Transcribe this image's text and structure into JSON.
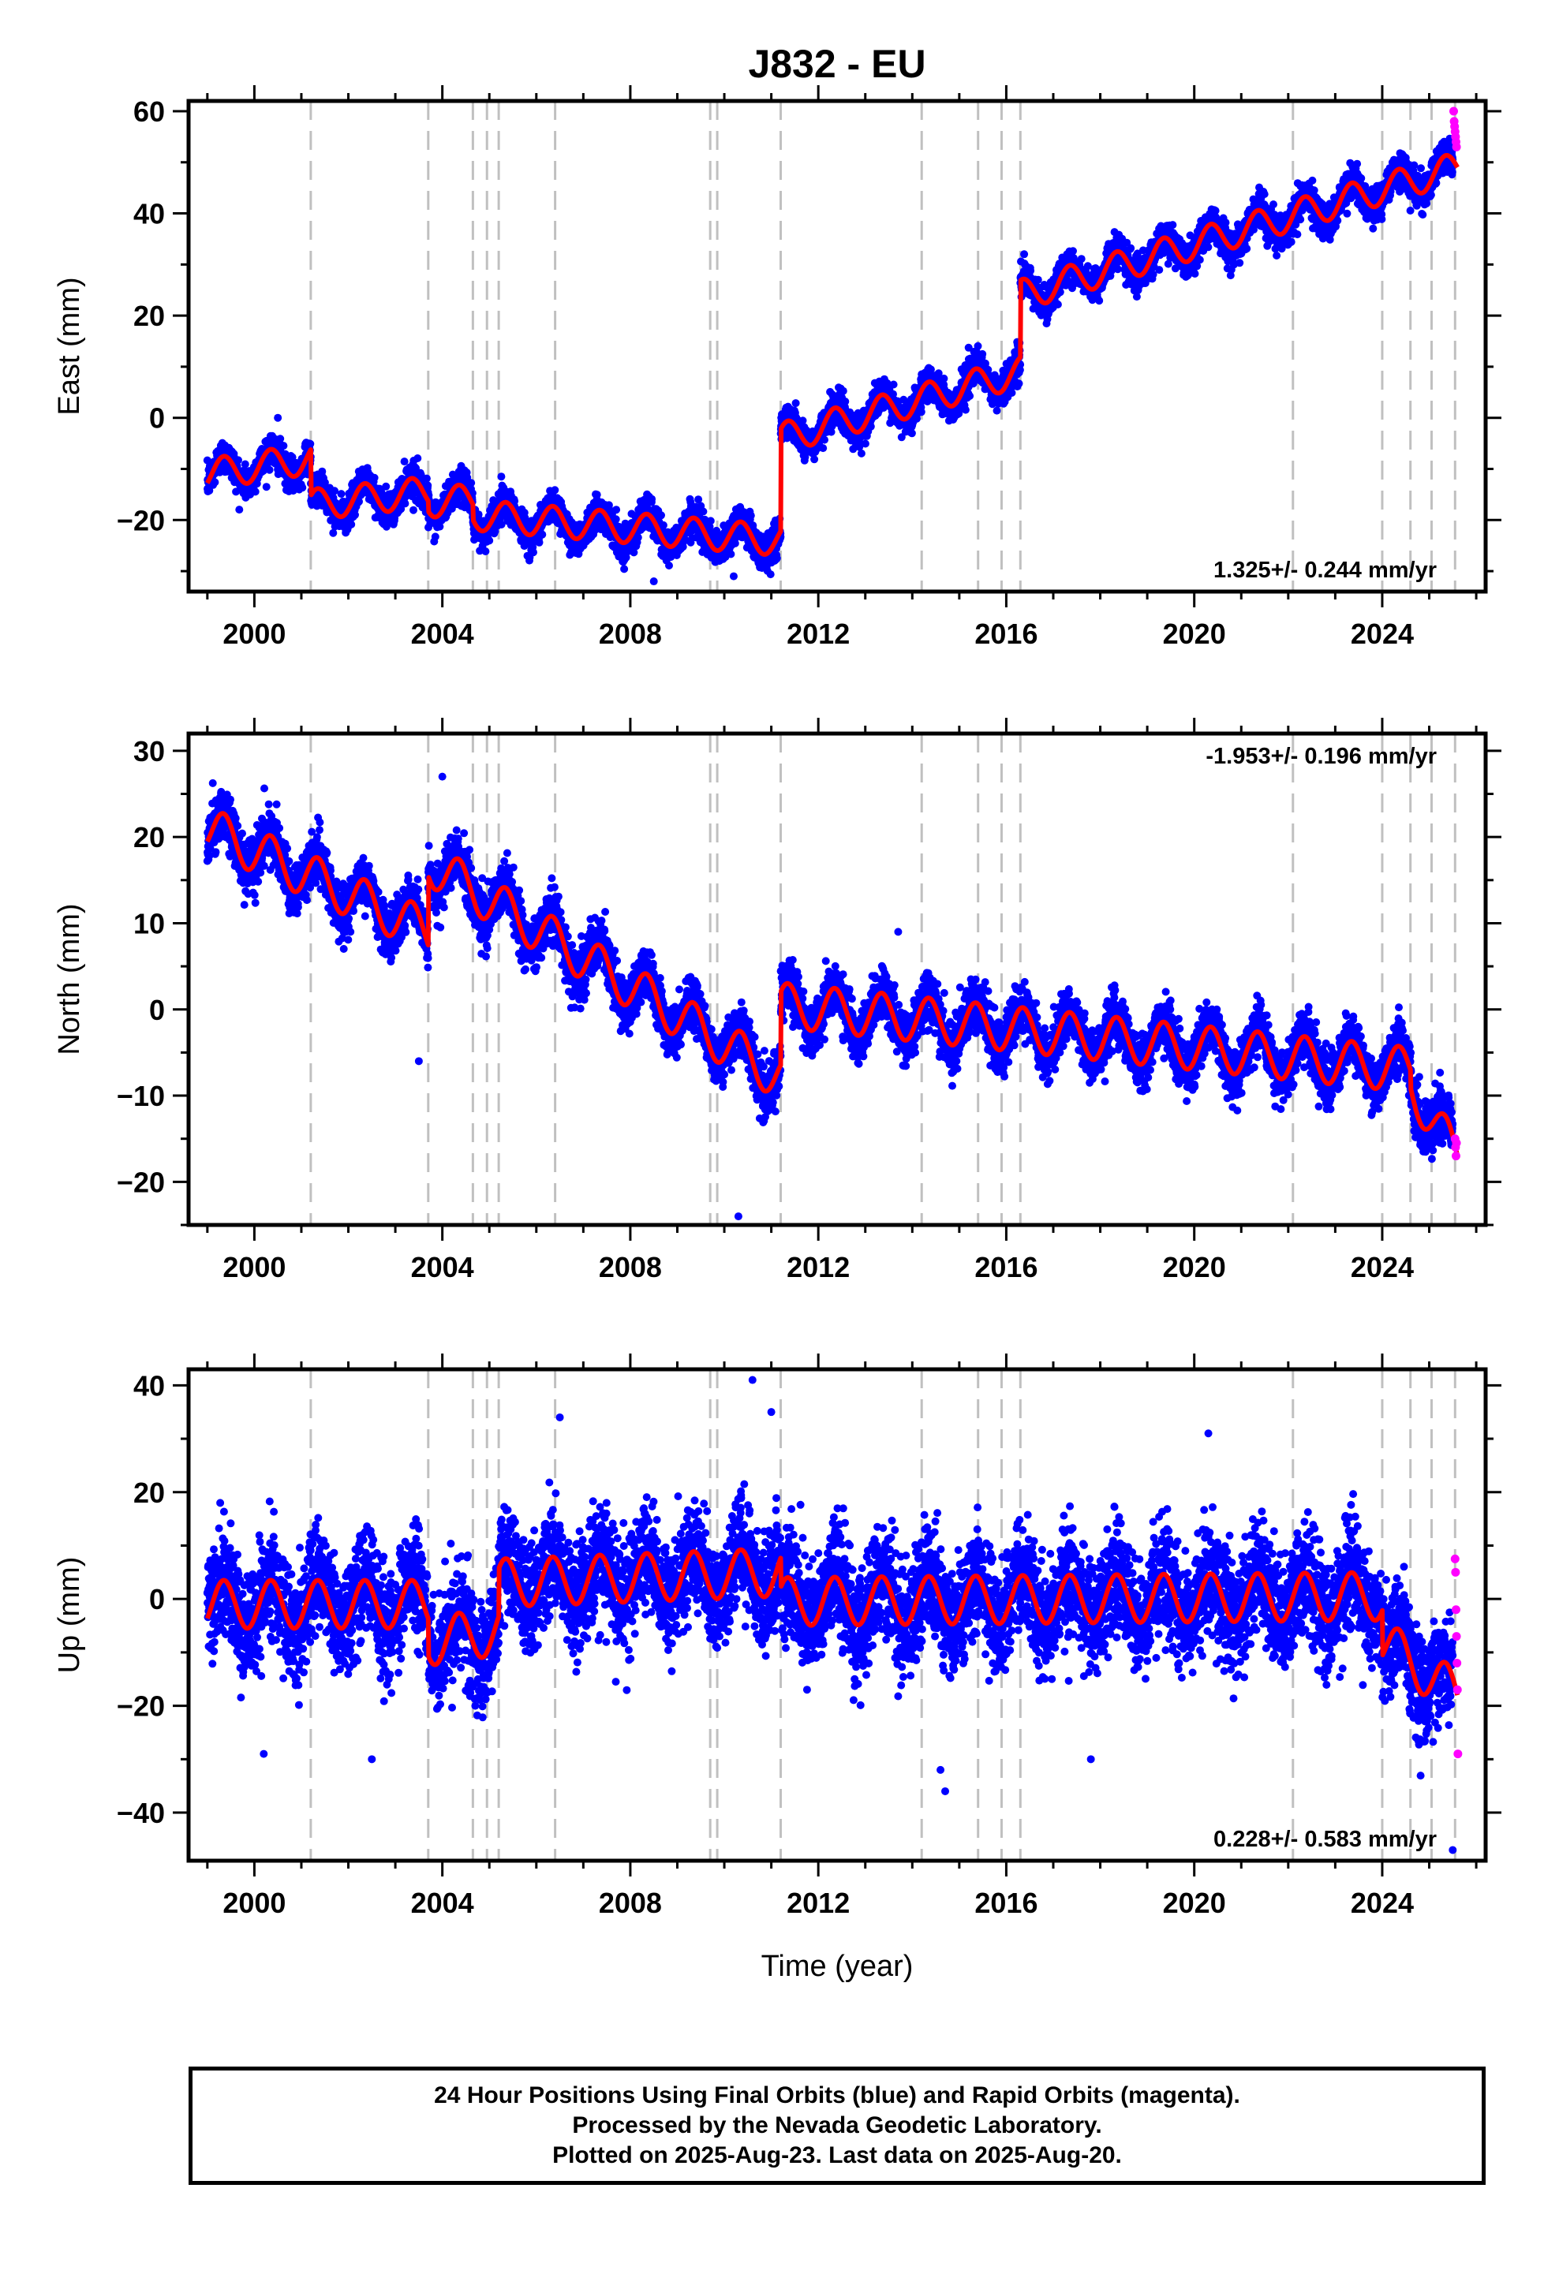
{
  "chart_data": {
    "type": "scatter",
    "title": "J832 - EU",
    "xlabel": "Time (year)",
    "xlim": [
      1998.6,
      2026.2
    ],
    "x_ticks": [
      2000,
      2004,
      2008,
      2012,
      2016,
      2020,
      2024
    ],
    "x_tick_labels": [
      "2000",
      "2004",
      "2008",
      "2012",
      "2016",
      "2020",
      "2024"
    ],
    "grid": false,
    "event_lines_dashed_gray": [
      2001.2,
      2003.7,
      2004.65,
      2004.95,
      2005.2,
      2006.4,
      2009.7,
      2009.85,
      2011.2,
      2014.2,
      2015.4,
      2015.9,
      2016.3,
      2022.1,
      2024.0,
      2024.6,
      2025.05,
      2025.55
    ],
    "series_colors": {
      "final_orbits": "#0000ff",
      "rapid_orbits": "#ff00ff",
      "model_fit": "#ff0000",
      "event_lines": "#c0c0c0"
    },
    "panels": [
      {
        "ylabel": "East (mm)",
        "ylim": [
          -34,
          62
        ],
        "y_ticks": [
          -20,
          0,
          20,
          40,
          60
        ],
        "y_tick_labels": [
          "−20",
          "0",
          "20",
          "40",
          "60"
        ],
        "rate_label": "1.325+/- 0.244 mm/yr",
        "rate_position": "bottom-right",
        "trend_segments": [
          {
            "start": 1999.0,
            "end": 2001.2,
            "v0": -11.0,
            "v1": -8.0
          },
          {
            "start": 2001.2,
            "end": 2003.7,
            "v0": -17.0,
            "v1": -14.5
          },
          {
            "start": 2003.7,
            "end": 2004.65,
            "v0": -16.5,
            "v1": -16.0
          },
          {
            "start": 2004.65,
            "end": 2011.2,
            "v0": -19.0,
            "v1": -24.0
          },
          {
            "start": 2011.2,
            "end": 2016.3,
            "v0": -4.0,
            "v1": 9.0
          },
          {
            "start": 2016.3,
            "end": 2025.6,
            "v0": 24.0,
            "v1": 49.0
          }
        ],
        "seasonal_amplitude": 3.0,
        "noise_sd": 1.6,
        "rapid_points": [
          {
            "x": 2025.52,
            "y": 60
          },
          {
            "x": 2025.53,
            "y": 58
          },
          {
            "x": 2025.54,
            "y": 57
          },
          {
            "x": 2025.55,
            "y": 56
          },
          {
            "x": 2025.56,
            "y": 55
          },
          {
            "x": 2025.57,
            "y": 54
          },
          {
            "x": 2025.58,
            "y": 53
          }
        ],
        "outliers": [
          {
            "x": 2000.5,
            "y": 0
          },
          {
            "x": 2008.5,
            "y": -32
          },
          {
            "x": 2010.2,
            "y": -31
          }
        ]
      },
      {
        "ylabel": "North (mm)",
        "ylim": [
          -25,
          32
        ],
        "y_ticks": [
          -20,
          -10,
          0,
          10,
          20,
          30
        ],
        "y_tick_labels": [
          "−20",
          "−10",
          "0",
          "10",
          "20",
          "30"
        ],
        "rate_label": "-1.953+/- 0.196 mm/yr",
        "rate_position": "top-right",
        "trend_segments": [
          {
            "start": 1999.0,
            "end": 2003.7,
            "v0": 21.0,
            "v1": 9.0
          },
          {
            "start": 2003.7,
            "end": 2011.2,
            "v0": 17.0,
            "v1": -8.0
          },
          {
            "start": 2011.2,
            "end": 2024.6,
            "v0": 0.5,
            "v1": -7.0
          },
          {
            "start": 2024.6,
            "end": 2025.6,
            "v0": -9.0,
            "v1": -17.0
          }
        ],
        "seasonal_amplitude": 2.6,
        "noise_sd": 1.5,
        "rapid_points": [
          {
            "x": 2025.55,
            "y": -15
          },
          {
            "x": 2025.56,
            "y": -16
          },
          {
            "x": 2025.57,
            "y": -17
          },
          {
            "x": 2025.58,
            "y": -15.5
          }
        ],
        "outliers": [
          {
            "x": 2003.5,
            "y": -6
          },
          {
            "x": 2010.3,
            "y": -24
          },
          {
            "x": 2004.0,
            "y": 27
          },
          {
            "x": 2013.7,
            "y": 9
          }
        ]
      },
      {
        "ylabel": "Up (mm)",
        "ylim": [
          -49,
          43
        ],
        "y_ticks": [
          -40,
          -20,
          0,
          20,
          40
        ],
        "y_tick_labels": [
          "−40",
          "−20",
          "0",
          "20",
          "40"
        ],
        "rate_label": "0.228+/- 0.583 mm/yr",
        "rate_position": "bottom-right",
        "trend_segments": [
          {
            "start": 1999.0,
            "end": 2003.7,
            "v0": -1.0,
            "v1": -1.0
          },
          {
            "start": 2003.7,
            "end": 2005.2,
            "v0": -8.0,
            "v1": -6.0
          },
          {
            "start": 2005.2,
            "end": 2011.2,
            "v0": 3.0,
            "v1": 5.0
          },
          {
            "start": 2011.2,
            "end": 2024.0,
            "v0": -0.5,
            "v1": 0.5
          },
          {
            "start": 2024.0,
            "end": 2025.6,
            "v0": -8.0,
            "v1": -18.0
          }
        ],
        "seasonal_amplitude": 4.5,
        "noise_sd": 5.0,
        "rapid_points": [
          {
            "x": 2025.55,
            "y": 7.5
          },
          {
            "x": 2025.56,
            "y": 5
          },
          {
            "x": 2025.57,
            "y": -2
          },
          {
            "x": 2025.58,
            "y": -7
          },
          {
            "x": 2025.59,
            "y": -12
          },
          {
            "x": 2025.6,
            "y": -17
          },
          {
            "x": 2025.61,
            "y": -29
          }
        ],
        "outliers": [
          {
            "x": 2010.6,
            "y": 41
          },
          {
            "x": 2011.0,
            "y": 35
          },
          {
            "x": 2020.3,
            "y": 31
          },
          {
            "x": 2000.2,
            "y": -29
          },
          {
            "x": 2002.5,
            "y": -30
          },
          {
            "x": 2014.7,
            "y": -36
          },
          {
            "x": 2017.8,
            "y": -30
          },
          {
            "x": 2025.5,
            "y": -47
          },
          {
            "x": 2014.6,
            "y": -32
          },
          {
            "x": 2006.5,
            "y": 34
          }
        ]
      }
    ]
  },
  "footer": {
    "line1": "24 Hour Positions Using Final Orbits (blue) and Rapid Orbits (magenta).",
    "line2": "Processed by the Nevada Geodetic Laboratory.",
    "line3": "Plotted on 2025-Aug-23. Last data on 2025-Aug-20."
  }
}
